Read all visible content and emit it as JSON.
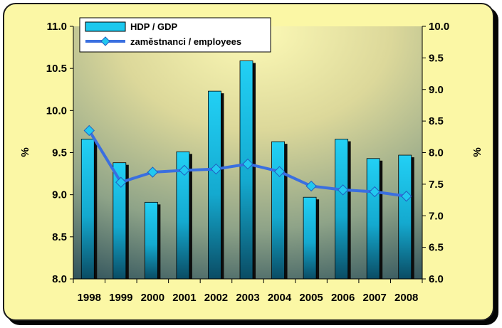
{
  "chart_data": {
    "type": "bar",
    "categories": [
      "1998",
      "1999",
      "2000",
      "2001",
      "2002",
      "2003",
      "2004",
      "2005",
      "2006",
      "2007",
      "2008"
    ],
    "series": [
      {
        "name": "HDP / GDP",
        "type": "bar",
        "axis": "left",
        "values": [
          9.66,
          9.38,
          8.91,
          9.51,
          10.23,
          10.59,
          9.63,
          8.97,
          9.66,
          9.43,
          9.47
        ]
      },
      {
        "name": "zaměstnanci / employees",
        "type": "line",
        "axis": "right",
        "values": [
          8.35,
          7.53,
          7.69,
          7.72,
          7.74,
          7.82,
          7.7,
          7.47,
          7.41,
          7.38,
          7.31
        ]
      }
    ],
    "y_left": {
      "label": "%",
      "ylim": [
        8.0,
        11.0
      ],
      "ticks": [
        "8.0",
        "8.5",
        "9.0",
        "9.5",
        "10.0",
        "10.5",
        "11.0"
      ]
    },
    "y_right": {
      "label": "%",
      "ylim": [
        6.0,
        10.0
      ],
      "ticks": [
        "6.0",
        "6.5",
        "7.0",
        "7.5",
        "8.0",
        "8.5",
        "9.0",
        "9.5",
        "10.0"
      ]
    },
    "grid": false,
    "legend_position": "top-left"
  },
  "colors": {
    "bar": "#1cc8ee",
    "bar_shadow": "#0d0d0d",
    "line": "#3a6fe0",
    "marker": "#22c8f0",
    "frame_bg": "#fbf7a5"
  },
  "icons": {
    "legend_bar": "bar-swatch-icon",
    "legend_line": "line-diamond-icon"
  }
}
